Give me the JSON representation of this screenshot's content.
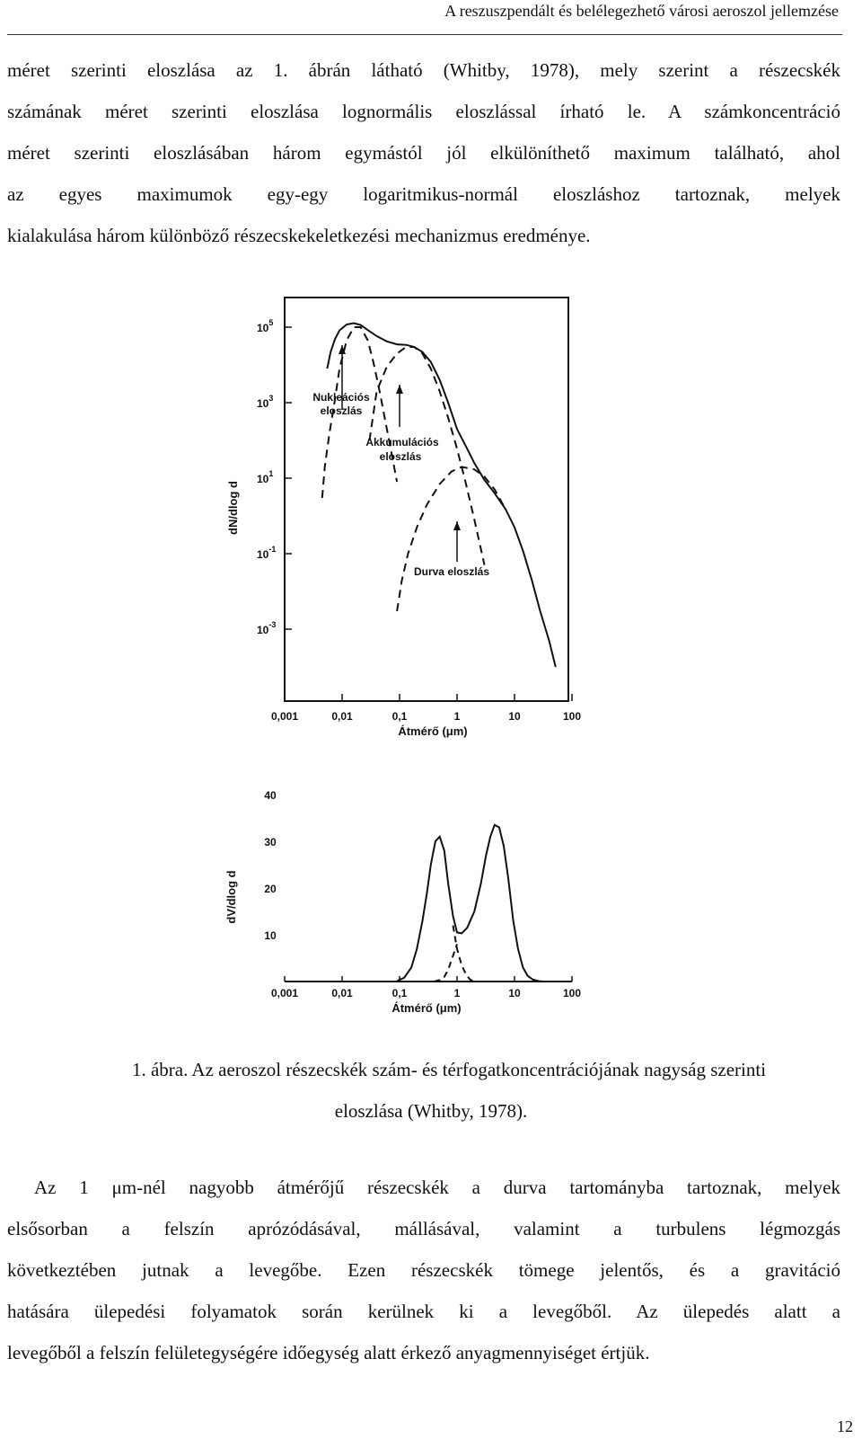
{
  "running_header": "A reszuszpendált és belélegezhető városi aeroszol jellemzése",
  "paragraph1_lines": [
    "méret szerinti eloszlása az 1. ábrán látható (Whitby, 1978), mely szerint a részecskék",
    "számának méret szerinti eloszlása lognormális eloszlással írható le. A számkoncentráció",
    "méret szerinti eloszlásában három egymástól jól elkülöníthető maximum található, ahol",
    "az egyes maximumok egy-egy logaritmikus-normál eloszláshoz tartoznak, melyek",
    "kialakulása három különböző részecskekeletkezési mechanizmus eredménye."
  ],
  "caption_lines": [
    "1. ábra. Az aeroszol részecskék szám- és térfogatkoncentrációjának nagyság szerinti",
    "eloszlása (Whitby, 1978)."
  ],
  "paragraph2_lines": [
    "Az 1 μm-nél nagyobb átmérőjű részecskék a durva tartományba tartoznak, melyek",
    "elsősorban a felszín aprózódásával, mállásával, valamint a turbulens légmozgás",
    "következtében jutnak a levegőbe. Ezen részecskék tömege jelentős, és a gravitáció",
    "hatására ülepedési folyamatok során kerülnek ki a levegőből. Az ülepedés alatt a",
    "levegőből a felszín felületegységére időegység alatt érkező anyagmennyiséget értjük."
  ],
  "page_number": "12",
  "chart_data": [
    {
      "type": "line",
      "title": "",
      "xlabel": "Átmérő (μm)",
      "ylabel": "dN/dlog d",
      "x_scale": "log",
      "y_scale": "log",
      "x_ticks": [
        "0,001",
        "0,01",
        "0,1",
        "1",
        "10",
        "100"
      ],
      "y_tick_bases": [
        "10",
        "10",
        "10",
        "10",
        "10"
      ],
      "y_tick_exponents": [
        "5",
        "3",
        "1",
        "-1",
        "-3"
      ],
      "annotations": [
        "Nukleációs",
        "eloszlás",
        "Akkumulációs",
        "eloszlás",
        "Durva eloszlás"
      ],
      "x_lim": [
        0.001,
        100
      ],
      "y_lim": [
        0.0001,
        1000000
      ],
      "series": [
        {
          "style": "solid",
          "x": [
            0.0055,
            0.0063,
            0.0075,
            0.009,
            0.012,
            0.016,
            0.021,
            0.028,
            0.04,
            0.06,
            0.09,
            0.13,
            0.18,
            0.25,
            0.35,
            0.5,
            0.7,
            1.0,
            1.5,
            2.0,
            3.0,
            4.5,
            7,
            10,
            14,
            20,
            28,
            40,
            52
          ],
          "y": [
            8000,
            22000,
            48000,
            82000,
            118000,
            128000,
            115000,
            84000,
            58000,
            42000,
            35000,
            34000,
            30000,
            22000,
            12000,
            4000,
            1000,
            200,
            60,
            25,
            9,
            4,
            1.5,
            0.5,
            0.12,
            0.02,
            0.003,
            0.0005,
            0.0001
          ]
        },
        {
          "style": "dashed",
          "x": [
            0.0045,
            0.005,
            0.006,
            0.0075,
            0.009,
            0.012,
            0.016,
            0.021,
            0.028,
            0.035,
            0.045,
            0.055,
            0.07,
            0.09
          ],
          "y": [
            3,
            20,
            150,
            1200,
            8000,
            45000,
            100000,
            100000,
            45000,
            12000,
            2000,
            400,
            60,
            8
          ]
        },
        {
          "style": "dashed",
          "x": [
            0.03,
            0.04,
            0.06,
            0.09,
            0.13,
            0.18,
            0.25,
            0.35,
            0.5,
            0.7,
            1.0,
            1.4,
            2.0,
            3.0
          ],
          "y": [
            100,
            2000,
            9000,
            20000,
            30000,
            30000,
            20000,
            8000,
            2000,
            400,
            60,
            8,
            0.8,
            0.05
          ]
        },
        {
          "style": "dashed",
          "x": [
            0.09,
            0.11,
            0.14,
            0.2,
            0.3,
            0.5,
            0.8,
            1.2,
            2.0,
            3.0,
            4.5,
            7
          ],
          "y": [
            0.003,
            0.02,
            0.1,
            0.5,
            2,
            7,
            15,
            20,
            17,
            11,
            5,
            1.5
          ]
        }
      ]
    },
    {
      "type": "line",
      "title": "",
      "xlabel": "Átmérő (μm)",
      "ylabel": "dV/dlog d",
      "x_scale": "log",
      "x_ticks": [
        "0,001",
        "0,01",
        "0,1",
        "1",
        "10",
        "100"
      ],
      "y_ticks": [
        "40",
        "30",
        "20",
        "10"
      ],
      "x_lim": [
        0.001,
        100
      ],
      "y_lim": [
        0,
        40
      ],
      "series": [
        {
          "style": "solid",
          "x": [
            0.09,
            0.12,
            0.16,
            0.2,
            0.25,
            0.3,
            0.35,
            0.42,
            0.5,
            0.6,
            0.7,
            0.85,
            1.0,
            1.2,
            1.5,
            2.0,
            2.6,
            3.2,
            3.8,
            4.5,
            5.4,
            6.5,
            7.8,
            9.5,
            11.5,
            14,
            17,
            21,
            26,
            31
          ],
          "y": [
            0.1,
            0.8,
            3,
            7,
            13,
            19,
            25,
            30,
            31,
            28,
            21,
            14,
            10.5,
            10.3,
            11.5,
            15,
            21,
            27,
            31,
            33.5,
            33,
            29,
            22,
            13,
            7,
            3,
            1.2,
            0.4,
            0.1,
            0
          ]
        },
        {
          "style": "dashed",
          "x": [
            0.85,
            1.0,
            1.2,
            1.45,
            1.7,
            2.0
          ],
          "y": [
            12,
            7,
            3.5,
            1.4,
            0.4,
            0
          ]
        },
        {
          "style": "dashed",
          "x": [
            0.4,
            0.5,
            0.6,
            0.7,
            0.85,
            1.0
          ],
          "y": [
            0,
            0.3,
            1,
            2.5,
            5.5,
            8
          ]
        }
      ]
    }
  ]
}
